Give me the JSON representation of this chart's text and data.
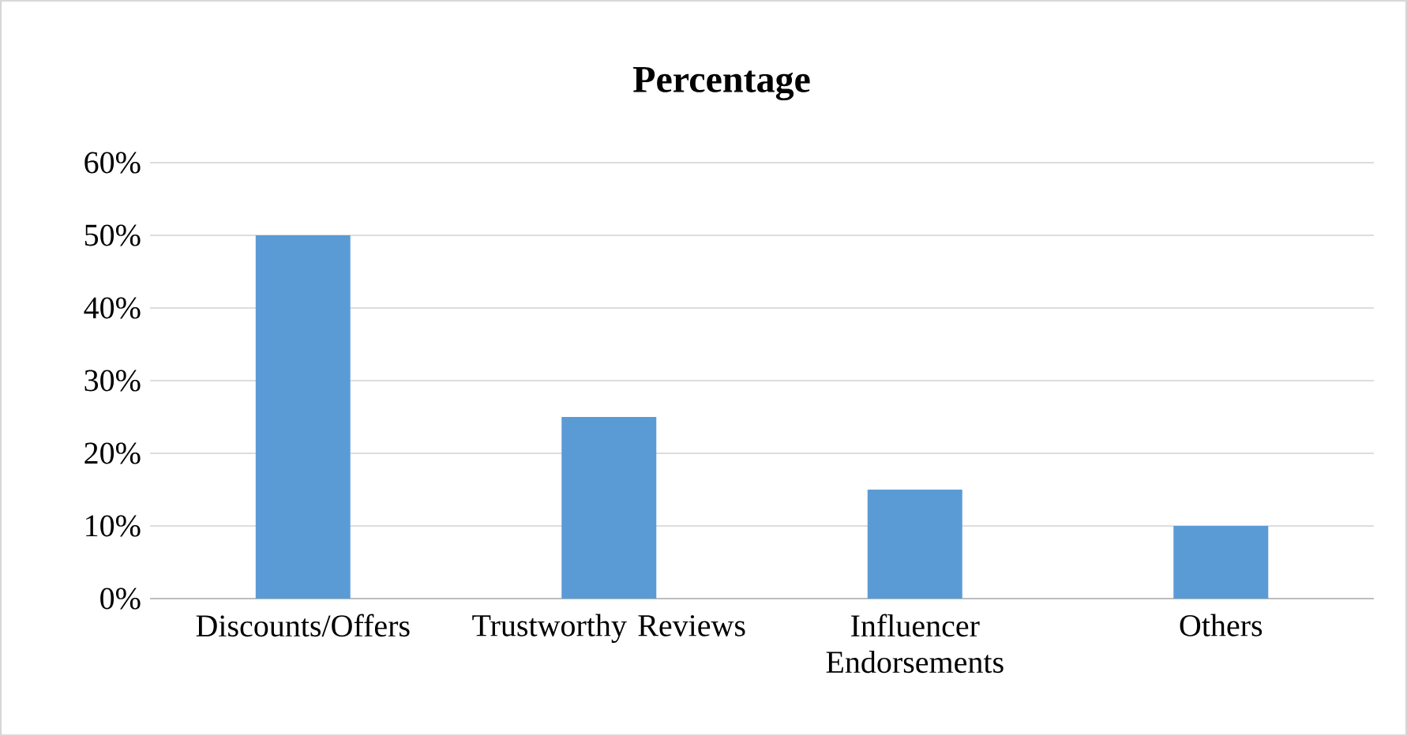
{
  "chart_data": {
    "type": "bar",
    "title": "Percentage",
    "categories": [
      "Discounts/Offers",
      "Trustworthy Reviews",
      "Influencer Endorsements",
      "Others"
    ],
    "values": [
      50,
      25,
      15,
      10
    ],
    "color": "#5b9bd5",
    "ylim": [
      0,
      60
    ],
    "yticks": [
      {
        "value": 0,
        "label": "0%"
      },
      {
        "value": 10,
        "label": "10%"
      },
      {
        "value": 20,
        "label": "20%"
      },
      {
        "value": 30,
        "label": "30%"
      },
      {
        "value": 40,
        "label": "40%"
      },
      {
        "value": 50,
        "label": "50%"
      },
      {
        "value": 60,
        "label": "60%"
      }
    ],
    "grid": "y"
  }
}
